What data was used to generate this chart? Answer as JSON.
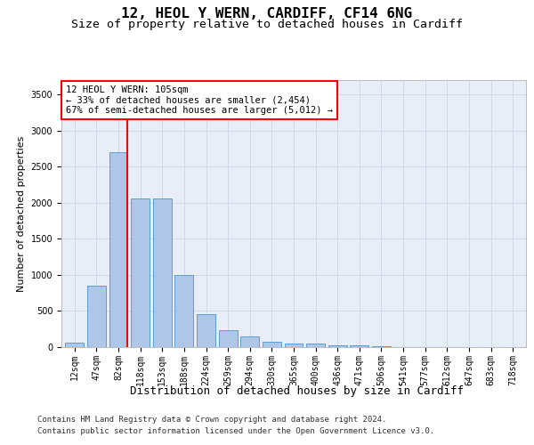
{
  "title1": "12, HEOL Y WERN, CARDIFF, CF14 6NG",
  "title2": "Size of property relative to detached houses in Cardiff",
  "xlabel": "Distribution of detached houses by size in Cardiff",
  "ylabel": "Number of detached properties",
  "categories": [
    "12sqm",
    "47sqm",
    "82sqm",
    "118sqm",
    "153sqm",
    "188sqm",
    "224sqm",
    "259sqm",
    "294sqm",
    "330sqm",
    "365sqm",
    "400sqm",
    "436sqm",
    "471sqm",
    "506sqm",
    "541sqm",
    "577sqm",
    "612sqm",
    "647sqm",
    "683sqm",
    "718sqm"
  ],
  "values": [
    60,
    850,
    2700,
    2060,
    2060,
    1000,
    460,
    230,
    145,
    70,
    55,
    45,
    30,
    20,
    10,
    5,
    5,
    3,
    2,
    2,
    2
  ],
  "bar_color": "#aec6e8",
  "bar_edge_color": "#5a9fd4",
  "grid_color": "#d0d8e8",
  "background_color": "#e8eef8",
  "vline_color": "red",
  "vline_pos": 2.425,
  "annotation_line1": "12 HEOL Y WERN: 105sqm",
  "annotation_line2": "← 33% of detached houses are smaller (2,454)",
  "annotation_line3": "67% of semi-detached houses are larger (5,012) →",
  "footer1": "Contains HM Land Registry data © Crown copyright and database right 2024.",
  "footer2": "Contains public sector information licensed under the Open Government Licence v3.0.",
  "ylim_max": 3700,
  "yticks": [
    0,
    500,
    1000,
    1500,
    2000,
    2500,
    3000,
    3500
  ],
  "title1_fontsize": 11.5,
  "title2_fontsize": 9.5,
  "xlabel_fontsize": 9,
  "ylabel_fontsize": 8,
  "tick_fontsize": 7,
  "footer_fontsize": 6.5,
  "ann_fontsize": 7.5
}
